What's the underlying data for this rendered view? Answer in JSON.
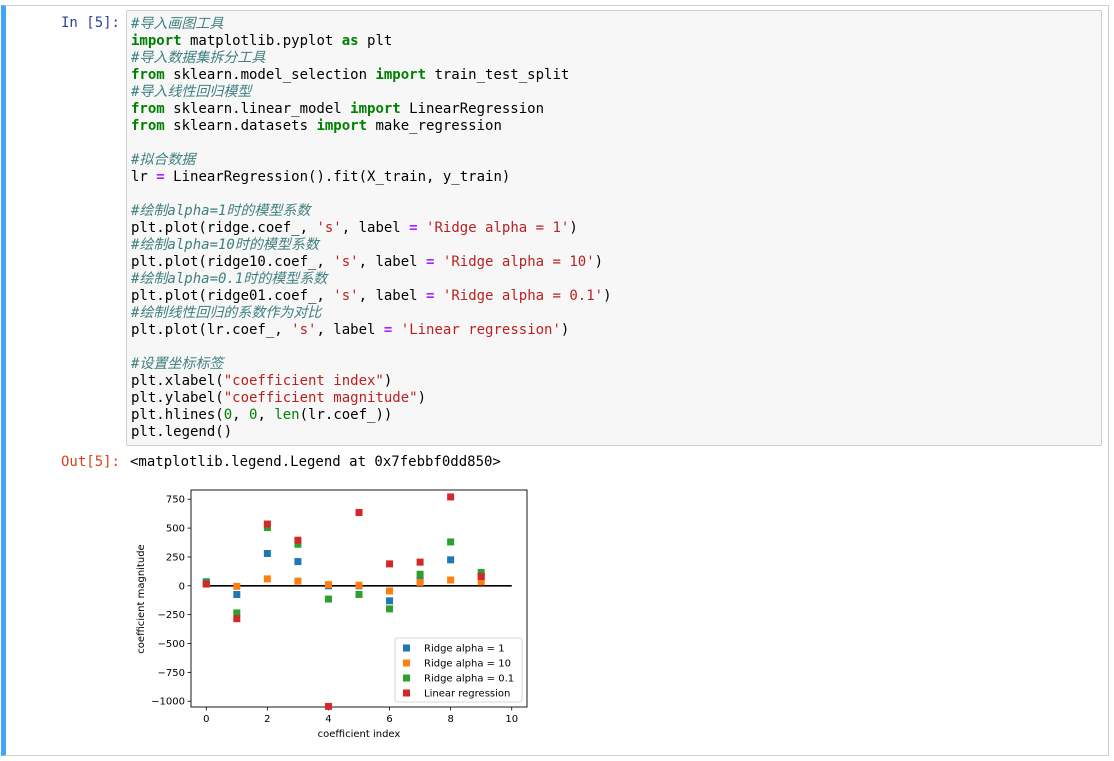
{
  "cell": {
    "in_prompt": "In [5]:",
    "out_prompt": "Out[5]:",
    "output_text": "<matplotlib.legend.Legend at 0x7febbf0dd850>"
  },
  "code_lines": [
    [
      [
        "cm",
        "#导入画图工具"
      ]
    ],
    [
      [
        "kw",
        "import"
      ],
      [
        "",
        " matplotlib.pyplot "
      ],
      [
        "kw",
        "as"
      ],
      [
        "",
        " plt"
      ]
    ],
    [
      [
        "cm",
        "#导入数据集拆分工具"
      ]
    ],
    [
      [
        "kw",
        "from"
      ],
      [
        "",
        " sklearn.model_selection "
      ],
      [
        "kw",
        "import"
      ],
      [
        "",
        " train_test_split"
      ]
    ],
    [
      [
        "cm",
        "#导入线性回归模型"
      ]
    ],
    [
      [
        "kw",
        "from"
      ],
      [
        "",
        " sklearn.linear_model "
      ],
      [
        "kw",
        "import"
      ],
      [
        "",
        " LinearRegression"
      ]
    ],
    [
      [
        "kw",
        "from"
      ],
      [
        "",
        " sklearn.datasets "
      ],
      [
        "kw",
        "import"
      ],
      [
        "",
        " make_regression"
      ]
    ],
    [
      [
        "",
        ""
      ]
    ],
    [
      [
        "cm",
        "#拟合数据"
      ]
    ],
    [
      [
        "",
        "lr "
      ],
      [
        "op",
        "="
      ],
      [
        "",
        " LinearRegression().fit(X_train, y_train)"
      ]
    ],
    [
      [
        "",
        ""
      ]
    ],
    [
      [
        "cm",
        "#绘制alpha=1时的模型系数"
      ]
    ],
    [
      [
        "",
        "plt.plot(ridge.coef_, "
      ],
      [
        "st",
        "'s'"
      ],
      [
        "",
        ", label "
      ],
      [
        "op",
        "="
      ],
      [
        "",
        " "
      ],
      [
        "st",
        "'Ridge alpha = 1'"
      ],
      [
        "",
        ")"
      ]
    ],
    [
      [
        "cm",
        "#绘制alpha=10时的模型系数"
      ]
    ],
    [
      [
        "",
        "plt.plot(ridge10.coef_, "
      ],
      [
        "st",
        "'s'"
      ],
      [
        "",
        ", label "
      ],
      [
        "op",
        "="
      ],
      [
        "",
        " "
      ],
      [
        "st",
        "'Ridge alpha = 10'"
      ],
      [
        "",
        ")"
      ]
    ],
    [
      [
        "cm",
        "#绘制alpha=0.1时的模型系数"
      ]
    ],
    [
      [
        "",
        "plt.plot(ridge01.coef_, "
      ],
      [
        "st",
        "'s'"
      ],
      [
        "",
        ", label "
      ],
      [
        "op",
        "="
      ],
      [
        "",
        " "
      ],
      [
        "st",
        "'Ridge alpha = 0.1'"
      ],
      [
        "",
        ")"
      ]
    ],
    [
      [
        "cm",
        "#绘制线性回归的系数作为对比"
      ]
    ],
    [
      [
        "",
        "plt.plot(lr.coef_, "
      ],
      [
        "st",
        "'s'"
      ],
      [
        "",
        ", label "
      ],
      [
        "op",
        "="
      ],
      [
        "",
        " "
      ],
      [
        "st",
        "'Linear regression'"
      ],
      [
        "",
        ")"
      ]
    ],
    [
      [
        "",
        ""
      ]
    ],
    [
      [
        "cm",
        "#设置坐标标签"
      ]
    ],
    [
      [
        "",
        "plt.xlabel("
      ],
      [
        "st",
        "\"coefficient index\""
      ],
      [
        "",
        ")"
      ]
    ],
    [
      [
        "",
        "plt.ylabel("
      ],
      [
        "st",
        "\"coefficient magnitude\""
      ],
      [
        "",
        ")"
      ]
    ],
    [
      [
        "",
        "plt.hlines("
      ],
      [
        "nu",
        "0"
      ],
      [
        "",
        ", "
      ],
      [
        "nu",
        "0"
      ],
      [
        "",
        ", "
      ],
      [
        "bi",
        "len"
      ],
      [
        "",
        "(lr.coef_))"
      ]
    ],
    [
      [
        "",
        "plt.legend()"
      ]
    ]
  ],
  "colors": {
    "ridge1": "#1f77b4",
    "ridge10": "#ff7f0e",
    "ridge01": "#2ca02c",
    "linear": "#d62728",
    "hline": "#000000",
    "prompt_in": "#303f9f",
    "prompt_out": "#d84315"
  },
  "chart_data": {
    "type": "scatter",
    "marker": "square",
    "xlabel": "coefficient index",
    "ylabel": "coefficient magnitude",
    "xlim": [
      -0.5,
      10.5
    ],
    "ylim": [
      -1050,
      830
    ],
    "xticks": [
      0,
      2,
      4,
      6,
      8,
      10
    ],
    "yticks": [
      750,
      500,
      250,
      0,
      -250,
      -500,
      -750,
      -1000
    ],
    "ytick_labels": [
      "750",
      "500",
      "250",
      "0",
      "−250",
      "−500",
      "−750",
      "−1000"
    ],
    "legend_position": "lower-right",
    "hline": {
      "y": 0,
      "xmin": 0,
      "xmax": 10
    },
    "x": [
      0,
      1,
      2,
      3,
      4,
      5,
      6,
      7,
      8,
      9
    ],
    "series": [
      {
        "name": "Ridge alpha = 1",
        "color_key": "ridge1",
        "values": [
          35,
          -75,
          280,
          210,
          0,
          0,
          -130,
          45,
          225,
          90
        ]
      },
      {
        "name": "Ridge alpha = 10",
        "color_key": "ridge10",
        "values": [
          25,
          -5,
          60,
          40,
          10,
          5,
          -45,
          30,
          50,
          35
        ]
      },
      {
        "name": "Ridge alpha = 0.1",
        "color_key": "ridge01",
        "values": [
          30,
          -235,
          505,
          360,
          -115,
          -75,
          -200,
          100,
          380,
          115
        ]
      },
      {
        "name": "Linear regression",
        "color_key": "linear",
        "values": [
          15,
          -285,
          535,
          395,
          -1045,
          635,
          190,
          205,
          770,
          80
        ]
      }
    ]
  }
}
